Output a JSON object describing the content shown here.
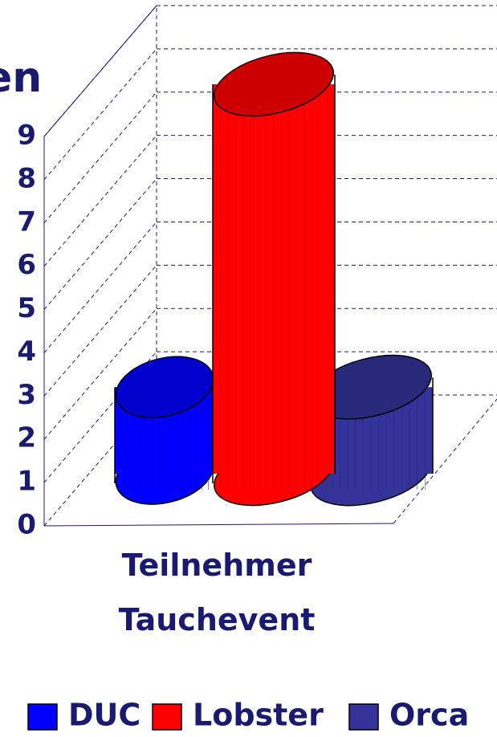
{
  "chart_data": {
    "type": "bar",
    "title": "en",
    "categories": [
      "Teilnehmer Tauchevent"
    ],
    "series": [
      {
        "name": "DUC",
        "color": "#0000ff",
        "values": [
          2
        ]
      },
      {
        "name": "Lobster",
        "color": "#ff0000",
        "values": [
          9
        ]
      },
      {
        "name": "Orca",
        "color": "#333399",
        "values": [
          2
        ]
      }
    ],
    "ylim": [
      0,
      9
    ],
    "yticks": [
      0,
      1,
      2,
      3,
      4,
      5,
      6,
      7,
      8,
      9
    ],
    "grid": true,
    "legend": "bottom"
  }
}
